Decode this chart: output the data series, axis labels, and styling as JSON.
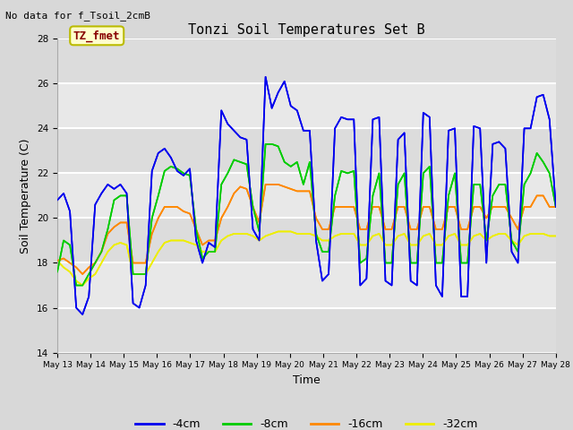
{
  "title": "Tonzi Soil Temperatures Set B",
  "subtitle": "No data for f_Tsoil_2cmB",
  "xlabel": "Time",
  "ylabel": "Soil Temperature (C)",
  "ylim": [
    14,
    28
  ],
  "legend_labels": [
    "-4cm",
    "-8cm",
    "-16cm",
    "-32cm"
  ],
  "legend_colors": [
    "#0000ee",
    "#00cc00",
    "#ff8800",
    "#eeee00"
  ],
  "annotation_box": "TZ_fmet",
  "annotation_color": "#880000",
  "annotation_bg": "#ffffcc",
  "annotation_border": "#bbbb00",
  "fig_bg": "#d8d8d8",
  "plot_bg_light": "#e8e8e8",
  "plot_bg_dark": "#d0d0d0",
  "x_tick_labels": [
    "May 13",
    "May 14",
    "May 15",
    "May 16",
    "May 17",
    "May 18",
    "May 19",
    "May 20",
    "May 21",
    "May 22",
    "May 23",
    "May 24",
    "May 25",
    "May 26",
    "May 27",
    "May 28"
  ],
  "series_4cm": [
    20.8,
    21.1,
    20.3,
    16.0,
    15.7,
    16.5,
    20.6,
    21.1,
    21.5,
    21.3,
    21.5,
    21.1,
    16.2,
    16.0,
    17.0,
    22.1,
    22.9,
    23.1,
    22.7,
    22.1,
    21.9,
    22.2,
    19.0,
    18.0,
    18.9,
    18.7,
    24.8,
    24.2,
    23.9,
    23.6,
    23.5,
    19.5,
    19.0,
    26.3,
    24.9,
    25.6,
    26.1,
    25.0,
    24.8,
    23.9,
    23.9,
    19.0,
    17.2,
    17.5,
    24.0,
    24.5,
    24.4,
    24.4,
    17.0,
    17.3,
    24.4,
    24.5,
    17.2,
    17.0,
    23.5,
    23.8,
    17.2,
    17.0,
    24.7,
    24.5,
    17.0,
    16.5,
    23.9,
    24.0,
    16.5,
    16.5,
    24.1,
    24.0,
    18.0,
    23.3,
    23.4,
    23.1,
    18.5,
    18.0,
    24.0,
    24.0,
    25.4,
    25.5,
    24.4,
    20.5
  ],
  "series_8cm": [
    17.6,
    19.0,
    18.8,
    17.0,
    17.0,
    17.5,
    18.0,
    18.5,
    19.5,
    20.8,
    21.0,
    21.0,
    17.5,
    17.5,
    17.5,
    20.0,
    21.0,
    22.1,
    22.3,
    22.2,
    22.0,
    21.9,
    19.5,
    18.2,
    18.5,
    18.5,
    21.5,
    22.0,
    22.6,
    22.5,
    22.4,
    20.5,
    19.4,
    23.3,
    23.3,
    23.2,
    22.5,
    22.3,
    22.5,
    21.5,
    22.5,
    19.3,
    18.5,
    18.5,
    21.0,
    22.1,
    22.0,
    22.1,
    18.0,
    18.2,
    21.0,
    22.0,
    18.0,
    18.0,
    21.5,
    22.0,
    18.0,
    18.0,
    22.0,
    22.3,
    18.0,
    18.0,
    21.0,
    22.0,
    18.0,
    18.0,
    21.5,
    21.5,
    19.0,
    21.0,
    21.5,
    21.5,
    19.0,
    18.5,
    21.5,
    22.0,
    22.9,
    22.5,
    22.0,
    20.5
  ],
  "series_16cm": [
    18.1,
    18.2,
    18.0,
    17.8,
    17.5,
    17.8,
    18.0,
    18.5,
    19.3,
    19.6,
    19.8,
    19.8,
    18.0,
    18.0,
    18.0,
    19.3,
    20.0,
    20.5,
    20.5,
    20.5,
    20.3,
    20.2,
    19.5,
    18.8,
    19.0,
    19.0,
    20.0,
    20.5,
    21.1,
    21.4,
    21.3,
    20.5,
    19.8,
    21.5,
    21.5,
    21.5,
    21.4,
    21.3,
    21.2,
    21.2,
    21.2,
    20.0,
    19.5,
    19.5,
    20.5,
    20.5,
    20.5,
    20.5,
    19.5,
    19.5,
    20.5,
    20.5,
    19.5,
    19.5,
    20.5,
    20.5,
    19.5,
    19.5,
    20.5,
    20.5,
    19.5,
    19.5,
    20.5,
    20.5,
    19.5,
    19.5,
    20.5,
    20.5,
    20.0,
    20.5,
    20.5,
    20.5,
    20.0,
    19.5,
    20.5,
    20.5,
    21.0,
    21.0,
    20.5,
    20.5
  ],
  "series_32cm": [
    18.1,
    17.8,
    17.6,
    17.2,
    17.0,
    17.3,
    17.5,
    18.0,
    18.5,
    18.8,
    18.9,
    18.8,
    17.5,
    17.5,
    17.5,
    18.0,
    18.5,
    18.9,
    19.0,
    19.0,
    19.0,
    18.9,
    18.8,
    18.5,
    18.5,
    18.5,
    19.0,
    19.2,
    19.3,
    19.3,
    19.3,
    19.2,
    19.0,
    19.2,
    19.3,
    19.4,
    19.4,
    19.4,
    19.3,
    19.3,
    19.3,
    19.2,
    19.0,
    19.0,
    19.2,
    19.3,
    19.3,
    19.3,
    18.8,
    18.8,
    19.2,
    19.3,
    18.8,
    18.8,
    19.2,
    19.3,
    18.8,
    18.8,
    19.2,
    19.3,
    18.8,
    18.8,
    19.2,
    19.3,
    18.8,
    18.8,
    19.2,
    19.3,
    19.0,
    19.2,
    19.3,
    19.3,
    19.0,
    18.8,
    19.2,
    19.3,
    19.3,
    19.3,
    19.2,
    19.2
  ]
}
